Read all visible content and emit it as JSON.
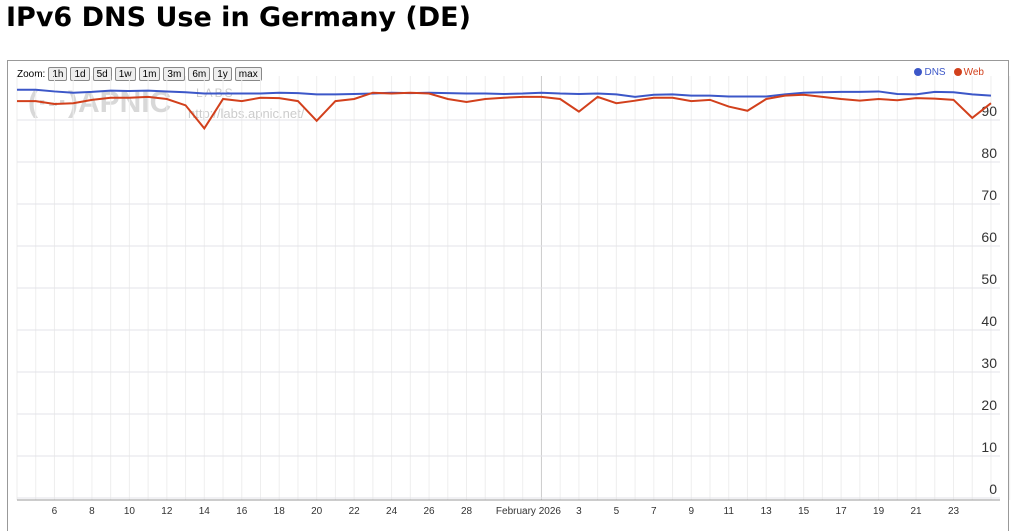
{
  "page_title": "IPv6 DNS Use in Germany (DE)",
  "zoom": {
    "label": "Zoom:",
    "buttons": [
      "1h",
      "1d",
      "5d",
      "1w",
      "1m",
      "3m",
      "6m",
      "1y",
      "max"
    ]
  },
  "watermark": {
    "logo": "(·-·)APNIC",
    "labs": "LABS",
    "url": "http://labs.apnic.net/"
  },
  "colors": {
    "dns": "#3c57c8",
    "web": "#d2401c"
  },
  "chart_data": {
    "type": "line",
    "title": "IPv6 DNS Use in Germany (DE)",
    "ylim": [
      0,
      100
    ],
    "yticks": [
      0,
      10,
      20,
      30,
      40,
      50,
      60,
      70,
      80,
      90
    ],
    "x_start": "2026-01-04",
    "x_step_days": 1,
    "xtick_labels": [
      "6",
      "8",
      "10",
      "12",
      "14",
      "16",
      "18",
      "20",
      "22",
      "24",
      "26",
      "28",
      "February 2026",
      "3",
      "5",
      "7",
      "9",
      "11",
      "13",
      "15",
      "17",
      "19",
      "21",
      "23"
    ],
    "xtick_day_offsets": [
      2,
      4,
      6,
      8,
      10,
      12,
      14,
      16,
      18,
      20,
      22,
      24,
      28,
      30,
      32,
      34,
      36,
      38,
      40,
      42,
      44,
      46,
      48,
      50
    ],
    "legend": [
      "DNS",
      "Web"
    ],
    "legend_position": "top-right",
    "series": [
      {
        "name": "DNS",
        "values": [
          97.2,
          97.2,
          96.8,
          96.5,
          96.7,
          97,
          96.9,
          97,
          96.8,
          96.6,
          96.3,
          96.3,
          96.3,
          96.3,
          96.5,
          96.4,
          96.1,
          96.1,
          96.2,
          96.3,
          96.5,
          96.4,
          96.5,
          96.4,
          96.3,
          96.3,
          96.2,
          96.3,
          96.5,
          96.3,
          96.2,
          96.3,
          96.1,
          95.5,
          96,
          96.1,
          95.8,
          95.8,
          95.6,
          95.6,
          95.6,
          96.1,
          96.5,
          96.6,
          96.7,
          96.7,
          96.8,
          96.2,
          96.1,
          96.7,
          96.6,
          96.1,
          95.8
        ]
      },
      {
        "name": "Web",
        "values": [
          94.5,
          94.5,
          93.8,
          94,
          94.8,
          95.3,
          95.3,
          95.5,
          95,
          93.5,
          88,
          95,
          94.5,
          95.3,
          95.2,
          94.5,
          89.8,
          94.5,
          95,
          96.5,
          96.3,
          96.5,
          96.3,
          95,
          94.3,
          95,
          95.3,
          95.5,
          95.5,
          95,
          92,
          95.5,
          94,
          94.6,
          95.3,
          95.3,
          94.5,
          94.8,
          93.2,
          92.2,
          95,
          95.8,
          96,
          95.5,
          95,
          94.6,
          95,
          94.7,
          95.2,
          95.1,
          94.8,
          90.5,
          94
        ]
      }
    ]
  }
}
